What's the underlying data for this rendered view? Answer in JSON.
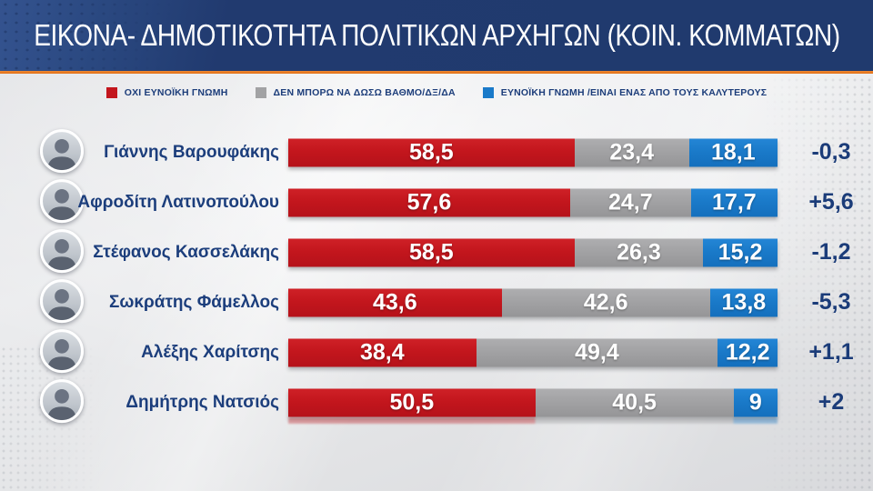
{
  "title": "ΕΙΚΟΝΑ- ΔΗΜΟΤΙΚΟΤΗΤΑ ΠΟΛΙΤΙΚΩΝ ΑΡΧΗΓΩΝ (ΚΟΙΝ. ΚΟΜΜΑΤΩΝ)",
  "legend": {
    "negative": "ΟΧΙ ΕΥΝΟΪΚΗ ΓΝΩΜΗ",
    "neutral": "ΔΕΝ ΜΠΟΡΩ ΝΑ ΔΩΣΩ ΒΑΘΜΟ/ΔΞ/ΔΑ",
    "positive": "ΕΥΝΟΪΚΗ ΓΝΩΜΗ /ΕΙΝΑΙ ΕΝΑΣ ΑΠΟ ΤΟΥΣ ΚΑΛΥΤΕΡΟΥΣ"
  },
  "colors": {
    "header_navy": "#203a6e",
    "accent_orange": "#e87722",
    "negative_red": "#c3161d",
    "neutral_gray": "#a2a2a4",
    "positive_blue": "#1a7ac9",
    "text_navy": "#1c3d7a",
    "background": "#e3e4e6"
  },
  "chart_data": {
    "type": "bar",
    "orientation": "horizontal-stacked",
    "unit": "percent",
    "axis_range": [
      0,
      100
    ],
    "legend_position": "top",
    "series_labels": [
      "ΟΧΙ ΕΥΝΟΪΚΗ ΓΝΩΜΗ",
      "ΔΕΝ ΜΠΟΡΩ ΝΑ ΔΩΣΩ ΒΑΘΜΟ/ΔΞ/ΔΑ",
      "ΕΥΝΟΪΚΗ ΓΝΩΜΗ /ΕΙΝΑΙ ΕΝΑΣ ΑΠΟ ΤΟΥΣ ΚΑΛΥΤΕΡΟΥΣ"
    ],
    "rows": [
      {
        "name": "Γιάννης Βαρουφάκης",
        "negative": 58.5,
        "neutral": 23.4,
        "positive": 18.1,
        "negative_label": "58,5",
        "neutral_label": "23,4",
        "positive_label": "18,1",
        "change": -0.3,
        "change_label": "-0,3"
      },
      {
        "name": "Αφροδίτη Λατινοπούλου",
        "negative": 57.6,
        "neutral": 24.7,
        "positive": 17.7,
        "negative_label": "57,6",
        "neutral_label": "24,7",
        "positive_label": "17,7",
        "change": 5.6,
        "change_label": "+5,6"
      },
      {
        "name": "Στέφανος Κασσελάκης",
        "negative": 58.5,
        "neutral": 26.3,
        "positive": 15.2,
        "negative_label": "58,5",
        "neutral_label": "26,3",
        "positive_label": "15,2",
        "change": -1.2,
        "change_label": "-1,2"
      },
      {
        "name": "Σωκράτης Φάμελλος",
        "negative": 43.6,
        "neutral": 42.6,
        "positive": 13.8,
        "negative_label": "43,6",
        "neutral_label": "42,6",
        "positive_label": "13,8",
        "change": -5.3,
        "change_label": "-5,3"
      },
      {
        "name": "Αλέξης Χαρίτσης",
        "negative": 38.4,
        "neutral": 49.4,
        "positive": 12.2,
        "negative_label": "38,4",
        "neutral_label": "49,4",
        "positive_label": "12,2",
        "change": 1.1,
        "change_label": "+1,1"
      },
      {
        "name": "Δημήτρης Νατσιός",
        "negative": 50.5,
        "neutral": 40.5,
        "positive": 9.0,
        "negative_label": "50,5",
        "neutral_label": "40,5",
        "positive_label": "9",
        "change": 2.0,
        "change_label": "+2"
      }
    ]
  }
}
